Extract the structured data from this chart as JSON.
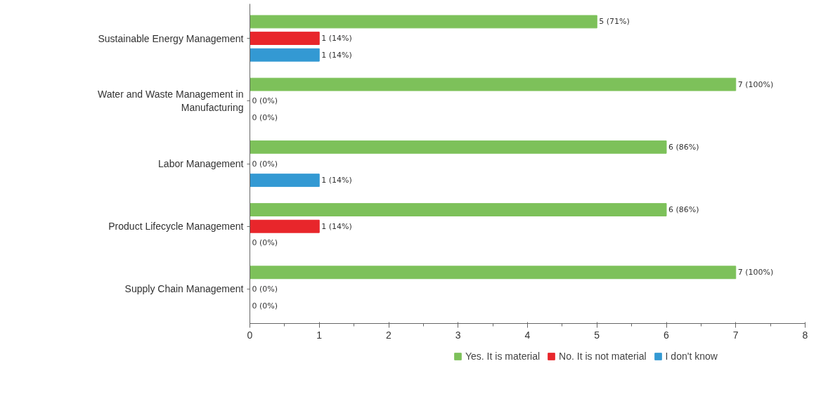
{
  "chart_data": {
    "type": "bar",
    "orientation": "horizontal",
    "categories": [
      "Sustainable Energy Management",
      "Water and Waste Management in Manufacturing",
      "Labor Management",
      "Product Lifecycle Management",
      "Supply Chain Management"
    ],
    "series": [
      {
        "name": "Yes. It is material",
        "color": "#7dc15a",
        "values": [
          5,
          7,
          6,
          6,
          7
        ],
        "value_labels": [
          "5 (71%)",
          "7 (100%)",
          "6 (86%)",
          "6 (86%)",
          "7 (100%)"
        ]
      },
      {
        "name": "No. It is not material",
        "color": "#e8262b",
        "values": [
          1,
          0,
          0,
          1,
          0
        ],
        "value_labels": [
          "1 (14%)",
          "0 (0%)",
          "0 (0%)",
          "1 (14%)",
          "0 (0%)"
        ]
      },
      {
        "name": "I don't know",
        "color": "#3399d3",
        "values": [
          1,
          0,
          1,
          0,
          0
        ],
        "value_labels": [
          "1 (14%)",
          "0 (0%)",
          "1 (14%)",
          "0 (0%)",
          "0 (0%)"
        ]
      }
    ],
    "xlim": [
      0,
      8
    ],
    "xticks": [
      0,
      1,
      2,
      3,
      4,
      5,
      6,
      7,
      8
    ],
    "grid": false,
    "legend": "bottom"
  }
}
